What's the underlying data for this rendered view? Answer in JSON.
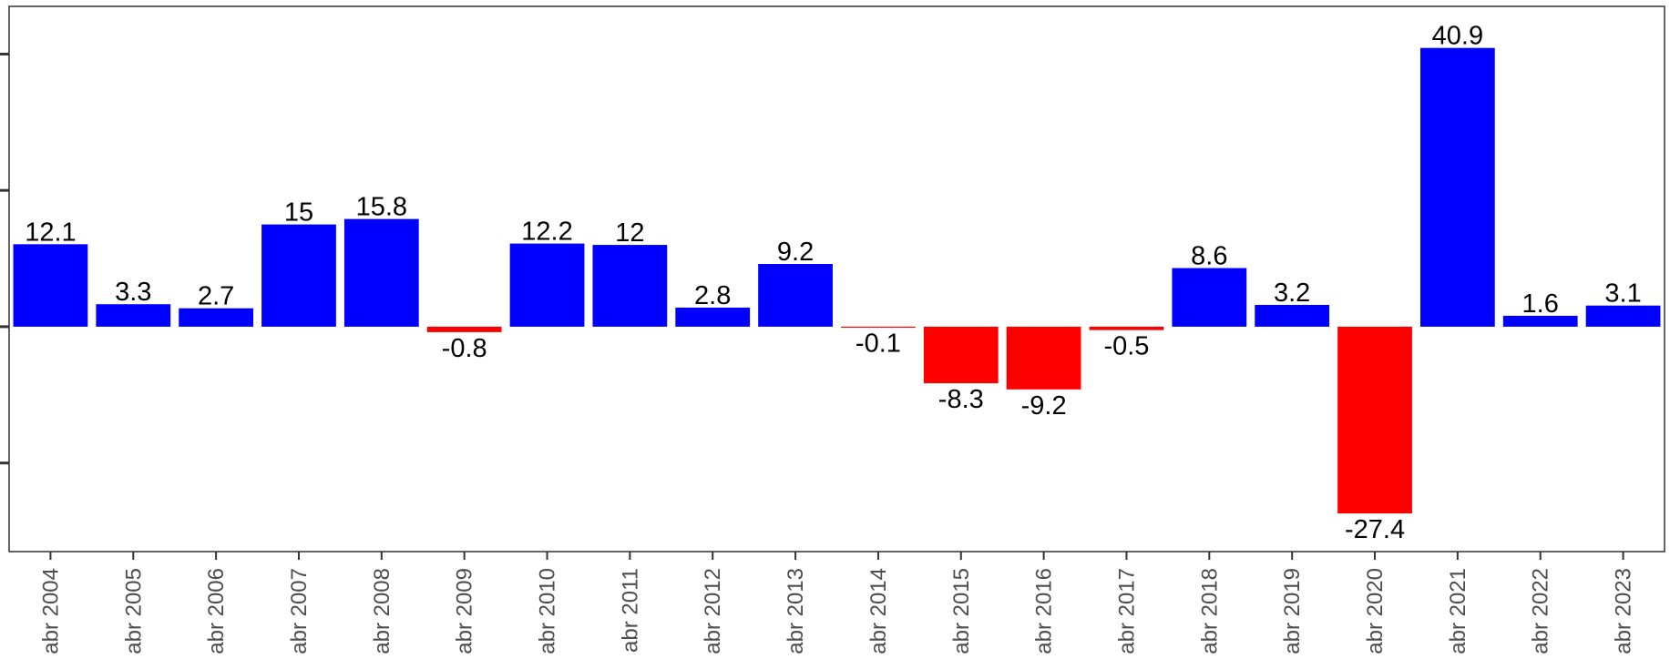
{
  "chart_data": {
    "type": "bar",
    "categories": [
      "abr 2004",
      "abr 2005",
      "abr 2006",
      "abr 2007",
      "abr 2008",
      "abr 2009",
      "abr 2010",
      "abr 2011",
      "abr 2012",
      "abr 2013",
      "abr 2014",
      "abr 2015",
      "abr 2016",
      "abr 2017",
      "abr 2018",
      "abr 2019",
      "abr 2020",
      "abr 2021",
      "abr 2022",
      "abr 2023"
    ],
    "values": [
      12.1,
      3.3,
      2.7,
      15,
      15.8,
      -0.8,
      12.2,
      12,
      2.8,
      9.2,
      -0.1,
      -8.3,
      -9.2,
      -0.5,
      8.6,
      3.2,
      -27.4,
      40.9,
      1.6,
      3.1
    ],
    "value_labels": [
      "12.1",
      "3.3",
      "2.7",
      "15",
      "15.8",
      "-0.8",
      "12.2",
      "12",
      "2.8",
      "9.2",
      "-0.1",
      "-8.3",
      "-9.2",
      "-0.5",
      "8.6",
      "3.2",
      "-27.4",
      "40.9",
      "1.6",
      "3.1"
    ],
    "title": "",
    "xlabel": "",
    "ylabel": "",
    "ylim": [
      -33,
      47
    ],
    "y_ticks": [
      -20,
      0,
      20,
      40
    ],
    "y_tick_labels_visible": false,
    "grid": false,
    "legend": "none",
    "colors": {
      "positive": "#0000ff",
      "negative": "#ff0000",
      "axis": "#333333"
    }
  }
}
